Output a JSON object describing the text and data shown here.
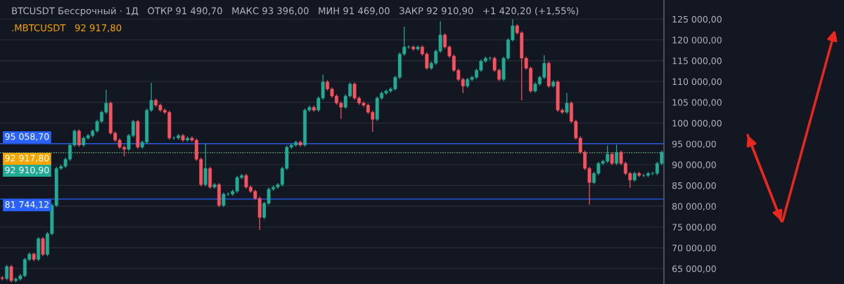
{
  "chart_data": {
    "type": "candlestick",
    "title": "BTCUSDT Бессрочный · 1Д   ОТКР 91 490,70   МАКС 93 396,00   МИН 91 469,00   ЗАКР 92 910,90   +1 420,20 (+1,55%)",
    "subtitle": ".MBTCUSDT   92 917,80",
    "categories": [
      null,
      null,
      null,
      null,
      null,
      null,
      null,
      null,
      null,
      null,
      null,
      null,
      null,
      null,
      null,
      null,
      null,
      null,
      null,
      null,
      null,
      null,
      null,
      null,
      null,
      null,
      null,
      null,
      null,
      null,
      null,
      null,
      null,
      null,
      null,
      null,
      null,
      null,
      null,
      null,
      null,
      null,
      null,
      null,
      null,
      null,
      null,
      null,
      null,
      null,
      null,
      null,
      null,
      null,
      null,
      null,
      null,
      null,
      null,
      null,
      null,
      null,
      null,
      null,
      null,
      null,
      null,
      null,
      null,
      null,
      null,
      null,
      null,
      null,
      null,
      null,
      null,
      null,
      null,
      null,
      null,
      null,
      null,
      null,
      null,
      null,
      null,
      null,
      null,
      null,
      null,
      null,
      null,
      null,
      null,
      null,
      null,
      null,
      null,
      null,
      null,
      null,
      null,
      null,
      null,
      null,
      null,
      null,
      null,
      null,
      null,
      null,
      null,
      null,
      null,
      null,
      null,
      null,
      null,
      null,
      null,
      null,
      null,
      null,
      null,
      null,
      null,
      null,
      null,
      null,
      null,
      null,
      null,
      null,
      null,
      null,
      null,
      null,
      null,
      null,
      null,
      null,
      null,
      null,
      null,
      null,
      null
    ],
    "ohlc": [
      [
        62800,
        63200,
        62200,
        62600
      ],
      [
        62600,
        65900,
        62200,
        65500
      ],
      [
        65500,
        65900,
        61700,
        62100
      ],
      [
        62100,
        62900,
        61700,
        62500
      ],
      [
        62500,
        63700,
        62100,
        63300
      ],
      [
        63300,
        67600,
        62900,
        67200
      ],
      [
        67200,
        68900,
        66800,
        68500
      ],
      [
        68500,
        68900,
        66800,
        67200
      ],
      [
        67200,
        72600,
        66800,
        72200
      ],
      [
        72200,
        72600,
        68000,
        68400
      ],
      [
        68400,
        73800,
        68000,
        73400
      ],
      [
        73400,
        80600,
        73000,
        80200
      ],
      [
        80200,
        89500,
        79800,
        89100
      ],
      [
        89100,
        90000,
        88700,
        89600
      ],
      [
        89600,
        91700,
        89200,
        91300
      ],
      [
        91300,
        95100,
        90900,
        94700
      ],
      [
        94700,
        98500,
        94300,
        98100
      ],
      [
        98100,
        98500,
        94300,
        94700
      ],
      [
        94700,
        96800,
        94300,
        96400
      ],
      [
        96400,
        97400,
        96000,
        97000
      ],
      [
        97000,
        98500,
        96600,
        98100
      ],
      [
        98100,
        100800,
        97700,
        100400
      ],
      [
        100400,
        103000,
        100000,
        102600
      ],
      [
        102600,
        108000,
        102200,
        104800
      ],
      [
        104800,
        105200,
        97200,
        97600
      ],
      [
        97600,
        98000,
        95500,
        95900
      ],
      [
        95900,
        96300,
        93800,
        94200
      ],
      [
        94200,
        94600,
        92000,
        93700
      ],
      [
        93700,
        97400,
        93300,
        97000
      ],
      [
        97000,
        100800,
        96600,
        100400
      ],
      [
        100400,
        100800,
        93800,
        94200
      ],
      [
        94200,
        95800,
        93800,
        95400
      ],
      [
        95400,
        103500,
        95000,
        103100
      ],
      [
        103100,
        109700,
        102700,
        105500
      ],
      [
        105500,
        105900,
        103900,
        104300
      ],
      [
        104300,
        104700,
        102700,
        103100
      ],
      [
        103100,
        103500,
        102200,
        102600
      ],
      [
        102600,
        103000,
        96000,
        96400
      ],
      [
        96400,
        96800,
        96000,
        96400
      ],
      [
        96400,
        97400,
        96000,
        97000
      ],
      [
        97000,
        97400,
        95500,
        95900
      ],
      [
        95900,
        96800,
        95500,
        96400
      ],
      [
        96400,
        96800,
        95500,
        95900
      ],
      [
        95900,
        96300,
        90900,
        91300
      ],
      [
        91300,
        91700,
        84800,
        85200
      ],
      [
        85200,
        95000,
        84800,
        89100
      ],
      [
        89100,
        89500,
        84200,
        84600
      ],
      [
        84600,
        85600,
        84200,
        85200
      ],
      [
        85200,
        85600,
        79800,
        80200
      ],
      [
        80200,
        83300,
        79800,
        82900
      ],
      [
        82900,
        83300,
        82500,
        82900
      ],
      [
        82900,
        84000,
        82500,
        83600
      ],
      [
        83600,
        87300,
        83200,
        86900
      ],
      [
        86900,
        87800,
        86500,
        87400
      ],
      [
        87400,
        87800,
        84200,
        84600
      ],
      [
        84600,
        85000,
        83200,
        83600
      ],
      [
        83600,
        84000,
        81500,
        81900
      ],
      [
        81900,
        82300,
        74300,
        77300
      ],
      [
        77300,
        81100,
        76900,
        80700
      ],
      [
        80700,
        84500,
        80300,
        84100
      ],
      [
        84100,
        85000,
        83700,
        84600
      ],
      [
        84600,
        85600,
        84200,
        85200
      ],
      [
        85200,
        89500,
        84800,
        89100
      ],
      [
        89100,
        94600,
        88700,
        94200
      ],
      [
        94200,
        95100,
        93800,
        94700
      ],
      [
        94700,
        95800,
        94300,
        95400
      ],
      [
        95400,
        95800,
        94300,
        94700
      ],
      [
        94700,
        103500,
        94300,
        103100
      ],
      [
        103100,
        104200,
        102700,
        103800
      ],
      [
        103800,
        104200,
        102700,
        103100
      ],
      [
        103100,
        106400,
        102700,
        106000
      ],
      [
        106000,
        111700,
        105600,
        109900
      ],
      [
        109900,
        110300,
        107800,
        108200
      ],
      [
        108200,
        108600,
        106100,
        106500
      ],
      [
        106500,
        106900,
        104400,
        104800
      ],
      [
        104800,
        105200,
        101000,
        103800
      ],
      [
        103800,
        106900,
        103400,
        106500
      ],
      [
        106500,
        109800,
        106100,
        109400
      ],
      [
        109400,
        109800,
        105600,
        106000
      ],
      [
        106000,
        106400,
        104400,
        104800
      ],
      [
        104800,
        105200,
        103900,
        104300
      ],
      [
        104300,
        104700,
        102200,
        102600
      ],
      [
        102600,
        103000,
        97900,
        100900
      ],
      [
        100900,
        106400,
        100500,
        106000
      ],
      [
        106000,
        107600,
        105600,
        107200
      ],
      [
        107200,
        108100,
        106800,
        107700
      ],
      [
        107700,
        108600,
        107300,
        108200
      ],
      [
        108200,
        111400,
        107800,
        111000
      ],
      [
        111000,
        117000,
        110600,
        116600
      ],
      [
        116600,
        123200,
        116200,
        118300
      ],
      [
        118300,
        118700,
        117900,
        118300
      ],
      [
        118300,
        118700,
        117400,
        117800
      ],
      [
        117800,
        118700,
        117400,
        118300
      ],
      [
        118300,
        118700,
        116200,
        116600
      ],
      [
        116600,
        117000,
        112800,
        113200
      ],
      [
        113200,
        114800,
        112800,
        114400
      ],
      [
        114400,
        117700,
        114000,
        117300
      ],
      [
        117300,
        124500,
        116900,
        121200
      ],
      [
        121200,
        121600,
        117900,
        118300
      ],
      [
        118300,
        118700,
        115700,
        116100
      ],
      [
        116100,
        116500,
        112300,
        112700
      ],
      [
        112700,
        113100,
        110100,
        110500
      ],
      [
        110500,
        110900,
        107200,
        108900
      ],
      [
        108900,
        110900,
        108500,
        110500
      ],
      [
        110500,
        111400,
        110100,
        111000
      ],
      [
        111000,
        113100,
        110600,
        112700
      ],
      [
        112700,
        115300,
        112300,
        114900
      ],
      [
        114900,
        116000,
        114500,
        115600
      ],
      [
        115600,
        116000,
        115200,
        115600
      ],
      [
        115600,
        116000,
        112300,
        112700
      ],
      [
        112700,
        113100,
        110100,
        110500
      ],
      [
        110500,
        116000,
        110100,
        115600
      ],
      [
        115600,
        120400,
        115200,
        120000
      ],
      [
        120000,
        125000,
        119600,
        123400
      ],
      [
        123400,
        123800,
        121300,
        121700
      ],
      [
        121700,
        122100,
        105500,
        115600
      ],
      [
        115600,
        116000,
        112800,
        113200
      ],
      [
        113200,
        113600,
        107300,
        107700
      ],
      [
        107700,
        109800,
        107300,
        109400
      ],
      [
        109400,
        111400,
        109000,
        111000
      ],
      [
        111000,
        116300,
        110600,
        114400
      ],
      [
        114400,
        114800,
        108500,
        108900
      ],
      [
        108900,
        110300,
        108500,
        109900
      ],
      [
        109900,
        110300,
        102700,
        103100
      ],
      [
        103100,
        103500,
        102200,
        102600
      ],
      [
        102600,
        107200,
        102200,
        104800
      ],
      [
        104800,
        105200,
        100000,
        100400
      ],
      [
        100400,
        100800,
        96000,
        96400
      ],
      [
        96400,
        96800,
        92600,
        93000
      ],
      [
        93000,
        93400,
        88700,
        89100
      ],
      [
        89100,
        89500,
        80300,
        85700
      ],
      [
        85700,
        88300,
        85300,
        87900
      ],
      [
        87900,
        90700,
        87500,
        90300
      ],
      [
        90300,
        91200,
        89900,
        90800
      ],
      [
        90800,
        94600,
        90400,
        92500
      ],
      [
        92500,
        92900,
        89900,
        90300
      ],
      [
        90300,
        94800,
        89900,
        93000
      ],
      [
        93000,
        93400,
        89900,
        90300
      ],
      [
        90300,
        90700,
        87500,
        87900
      ],
      [
        87900,
        88300,
        84400,
        86300
      ],
      [
        86300,
        88300,
        85900,
        87900
      ],
      [
        87900,
        88300,
        87000,
        87400
      ],
      [
        87400,
        87800,
        87000,
        87400
      ],
      [
        87400,
        88300,
        87000,
        87900
      ],
      [
        87900,
        88300,
        87500,
        87900
      ],
      [
        87900,
        90700,
        87500,
        90300
      ],
      [
        90300,
        93400,
        89900,
        93000
      ]
    ],
    "colors": [
      "#f7525f",
      "#22ab94",
      "#f7525f",
      "#22ab94",
      "#22ab94",
      "#22ab94",
      "#22ab94",
      "#f7525f",
      "#22ab94",
      "#f7525f",
      "#22ab94",
      "#22ab94",
      "#22ab94",
      "#22ab94",
      "#22ab94",
      "#22ab94",
      "#22ab94",
      "#f7525f",
      "#22ab94",
      "#22ab94",
      "#22ab94",
      "#22ab94",
      "#22ab94",
      "#22ab94",
      "#f7525f",
      "#f7525f",
      "#f7525f",
      "#f7525f",
      "#22ab94",
      "#22ab94",
      "#f7525f",
      "#22ab94",
      "#22ab94",
      "#22ab94",
      "#f7525f",
      "#f7525f",
      "#f7525f",
      "#f7525f",
      "#22ab94",
      "#22ab94",
      "#f7525f",
      "#22ab94",
      "#f7525f",
      "#f7525f",
      "#f7525f",
      "#22ab94",
      "#f7525f",
      "#22ab94",
      "#f7525f",
      "#22ab94",
      "#22ab94",
      "#22ab94",
      "#22ab94",
      "#22ab94",
      "#f7525f",
      "#f7525f",
      "#f7525f",
      "#f7525f",
      "#22ab94",
      "#22ab94",
      "#22ab94",
      "#22ab94",
      "#22ab94",
      "#22ab94",
      "#22ab94",
      "#22ab94",
      "#f7525f",
      "#22ab94",
      "#22ab94",
      "#f7525f",
      "#22ab94",
      "#22ab94",
      "#f7525f",
      "#f7525f",
      "#f7525f",
      "#f7525f",
      "#22ab94",
      "#22ab94",
      "#f7525f",
      "#f7525f",
      "#f7525f",
      "#f7525f",
      "#f7525f",
      "#22ab94",
      "#22ab94",
      "#22ab94",
      "#22ab94",
      "#22ab94",
      "#22ab94",
      "#22ab94",
      "#22ab94",
      "#f7525f",
      "#22ab94",
      "#f7525f",
      "#f7525f",
      "#22ab94",
      "#22ab94",
      "#22ab94",
      "#f7525f",
      "#f7525f",
      "#f7525f",
      "#f7525f",
      "#f7525f",
      "#22ab94",
      "#22ab94",
      "#22ab94",
      "#22ab94",
      "#22ab94",
      "#22ab94",
      "#f7525f",
      "#f7525f",
      "#22ab94",
      "#22ab94",
      "#22ab94",
      "#f7525f",
      "#f7525f",
      "#f7525f",
      "#f7525f",
      "#22ab94",
      "#22ab94",
      "#22ab94",
      "#f7525f",
      "#22ab94",
      "#f7525f",
      "#f7525f",
      "#22ab94",
      "#f7525f",
      "#f7525f",
      "#f7525f",
      "#f7525f",
      "#f7525f",
      "#22ab94",
      "#22ab94",
      "#22ab94",
      "#22ab94",
      "#f7525f",
      "#22ab94",
      "#f7525f",
      "#f7525f",
      "#f7525f",
      "#22ab94",
      "#f7525f",
      "#22ab94",
      "#22ab94",
      "#22ab94",
      "#22ab94",
      "#22ab94"
    ],
    "ylim": [
      61300,
      129600
    ],
    "yticks": [
      {
        "value": 65000,
        "label": "65 000,00"
      },
      {
        "value": 70000,
        "label": "70 000,00"
      },
      {
        "value": 75000,
        "label": "75 000,00"
      },
      {
        "value": 80000,
        "label": "80 000,00"
      },
      {
        "value": 85000,
        "label": "85 000,00"
      },
      {
        "value": 90000,
        "label": "90 000,00"
      },
      {
        "value": 95000,
        "label": "95 000,00"
      },
      {
        "value": 100000,
        "label": "100 000,00"
      },
      {
        "value": 105000,
        "label": "105 000,00"
      },
      {
        "value": 110000,
        "label": "110 000,00"
      },
      {
        "value": 115000,
        "label": "115 000,00"
      },
      {
        "value": 120000,
        "label": "120 000,00"
      },
      {
        "value": 125000,
        "label": "125 000,00"
      }
    ],
    "ref_lines": [
      {
        "axis": "y",
        "value": 95058.7,
        "label": "95 058,70",
        "color": "#2962ff",
        "line_style": "solid"
      },
      {
        "axis": "y",
        "value": 92917.8,
        "label": "92 917,80",
        "color": "#f7a600",
        "line_style": "dotted"
      },
      {
        "axis": "y",
        "value": 92910.9,
        "label": "92 910,90",
        "color": "#22ab94",
        "line_style": "dotted"
      },
      {
        "axis": "y",
        "value": 81744.12,
        "label": "81 744,12",
        "color": "#2962ff",
        "line_style": "solid"
      }
    ],
    "grid": "y"
  }
}
